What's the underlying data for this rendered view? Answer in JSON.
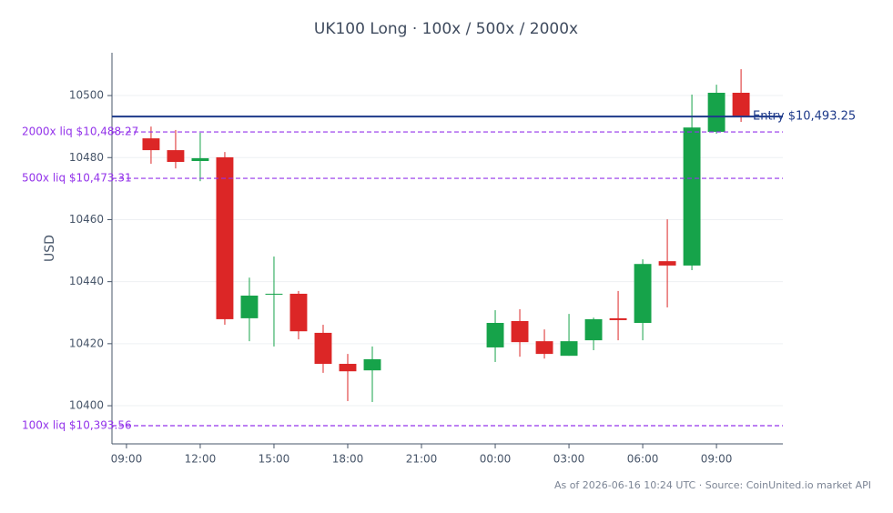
{
  "chart_data": {
    "type": "candlestick",
    "title": "UK100 Long · 100x / 500x / 2000x",
    "y_label": "USD",
    "note": "As of 2026-06-16 10:24 UTC · Source: CoinUnited.io market API",
    "up_color": "#16a34a",
    "down_color": "#dc2626",
    "grid": true,
    "xlim": [
      8.41,
      35.7
    ],
    "xticks": [
      {
        "value": 9,
        "label": "09:00"
      },
      {
        "value": 12,
        "label": "12:00"
      },
      {
        "value": 15,
        "label": "15:00"
      },
      {
        "value": 18,
        "label": "18:00"
      },
      {
        "value": 21,
        "label": "21:00"
      },
      {
        "value": 24,
        "label": "00:00"
      },
      {
        "value": 27,
        "label": "03:00"
      },
      {
        "value": 30,
        "label": "06:00"
      },
      {
        "value": 33,
        "label": "09:00"
      }
    ],
    "ylim": [
      10387.7,
      10513.8
    ],
    "yticks": [
      10400,
      10420,
      10440,
      10460,
      10480,
      10500
    ],
    "x": [
      10,
      11,
      12,
      13,
      14,
      15,
      16,
      17,
      18,
      19,
      24,
      25,
      26,
      27,
      28,
      29,
      30,
      31,
      32,
      33,
      34
    ],
    "open": [
      10486.2,
      10482.4,
      10478.9,
      10480.1,
      10428.2,
      10436.0,
      10436.1,
      10423.5,
      10413.5,
      10411.4,
      10418.8,
      10427.3,
      10420.8,
      10416.1,
      10421.1,
      10428.2,
      10426.7,
      10446.6,
      10445.2,
      10488.3,
      10500.9
    ],
    "high": [
      10490.0,
      10488.9,
      10488.0,
      10481.8,
      10441.3,
      10448.1,
      10437.0,
      10426.1,
      10416.7,
      10419.1,
      10430.8,
      10431.1,
      10424.6,
      10429.6,
      10428.4,
      10437.0,
      10447.2,
      10460.1,
      10500.3,
      10503.5,
      10508.5
    ],
    "low": [
      10478.0,
      10476.5,
      10472.4,
      10426.1,
      10420.8,
      10419.1,
      10421.4,
      10410.6,
      10401.5,
      10401.2,
      10414.1,
      10415.8,
      10415.2,
      10416.1,
      10417.9,
      10421.1,
      10421.1,
      10431.7,
      10443.7,
      10487.7,
      10491.5
    ],
    "close": [
      10482.4,
      10478.6,
      10479.8,
      10427.9,
      10435.5,
      10436.1,
      10424.0,
      10413.5,
      10411.1,
      10415.0,
      10426.7,
      10420.5,
      10416.7,
      10420.8,
      10427.9,
      10427.6,
      10445.7,
      10445.2,
      10489.7,
      10500.9,
      10493.3
    ],
    "lines": [
      {
        "value": 10493.25,
        "label": "Entry $10,493.25",
        "color": "#1e3a8a",
        "style": "solid",
        "label_side": "right"
      },
      {
        "value": 10488.27,
        "label": "2000x liq $10,488.27",
        "color": "#9333ea",
        "style": "dashed",
        "label_side": "left"
      },
      {
        "value": 10473.31,
        "label": "500x liq $10,473.31",
        "color": "#9333ea",
        "style": "dashed",
        "label_side": "left"
      },
      {
        "value": 10393.56,
        "label": "100x liq $10,393.56",
        "color": "#9333ea",
        "style": "dashed",
        "label_side": "left"
      }
    ]
  }
}
